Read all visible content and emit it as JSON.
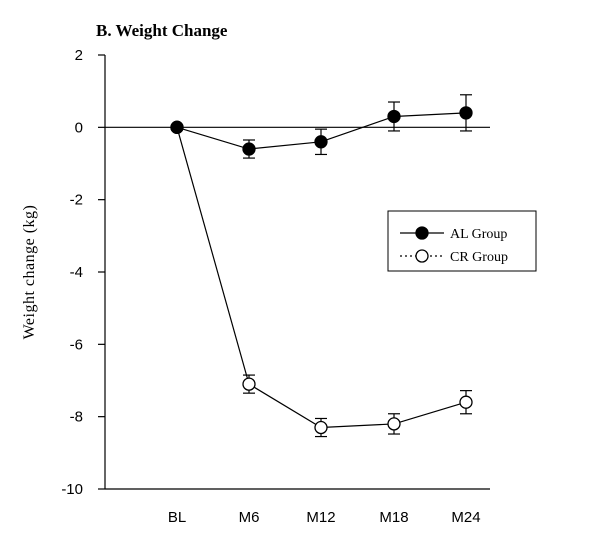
{
  "chart_data": {
    "type": "line",
    "title": "B. Weight Change",
    "xlabel": "",
    "ylabel": "Weight change (kg)",
    "categories": [
      "BL",
      "M6",
      "M12",
      "M18",
      "M24"
    ],
    "ylim": [
      -10,
      2
    ],
    "yticks": [
      2,
      0,
      -2,
      -4,
      -6,
      -8,
      -10
    ],
    "reference_line_y": 0,
    "legend_position": "right",
    "series": [
      {
        "name": "AL Group",
        "marker": "filled-circle",
        "line_style": "solid",
        "values": [
          0,
          -0.6,
          -0.4,
          0.3,
          0.4
        ],
        "error": [
          0,
          0.25,
          0.35,
          0.4,
          0.5
        ]
      },
      {
        "name": "CR Group",
        "marker": "open-circle",
        "line_style": "dotted",
        "values": [
          0,
          -7.1,
          -8.3,
          -8.2,
          -7.6
        ],
        "error": [
          0,
          0.25,
          0.25,
          0.28,
          0.32
        ]
      }
    ]
  }
}
